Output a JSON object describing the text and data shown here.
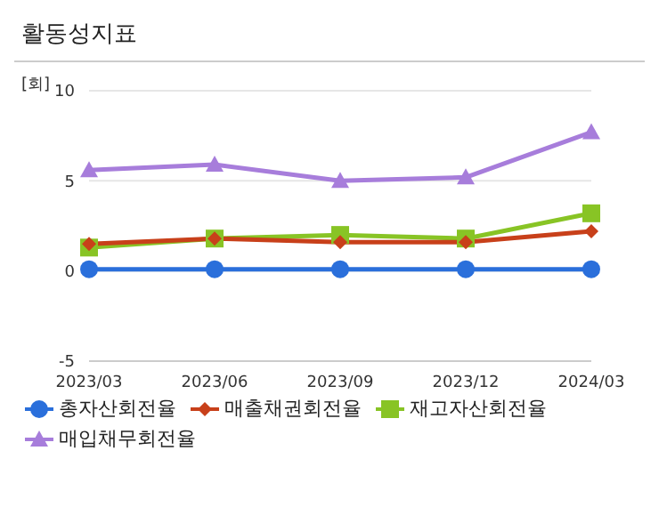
{
  "chart_data": {
    "type": "line",
    "title": "활동성지표",
    "ylabel": "[회]",
    "categories": [
      "2023/03",
      "2023/06",
      "2023/09",
      "2023/12",
      "2024/03"
    ],
    "series": [
      {
        "name": "총자산회전율",
        "color": "#2a6fdb",
        "marker": "circle",
        "values": [
          0.1,
          0.1,
          0.1,
          0.1,
          0.1
        ]
      },
      {
        "name": "매출채권회전율",
        "color": "#c8401a",
        "marker": "diamond",
        "values": [
          1.5,
          1.8,
          1.6,
          1.6,
          2.2
        ]
      },
      {
        "name": "재고자산회전율",
        "color": "#88c425",
        "marker": "square",
        "values": [
          1.3,
          1.8,
          2.0,
          1.8,
          3.2
        ]
      },
      {
        "name": "매입채무회전율",
        "color": "#a77ddb",
        "marker": "triangle",
        "values": [
          5.6,
          5.9,
          5.0,
          5.2,
          7.7
        ]
      }
    ],
    "ylim": [
      -5,
      10
    ],
    "yticks": [
      -5,
      0,
      5,
      10
    ],
    "grid": "y",
    "legend": "bottom"
  }
}
